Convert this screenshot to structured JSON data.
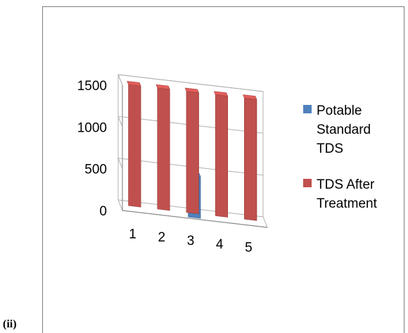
{
  "figure_label": "(ii)",
  "chart_data": {
    "type": "bar",
    "variant": "3d-clustered-column",
    "categories": [
      "1",
      "2",
      "3",
      "4",
      "5"
    ],
    "series": [
      {
        "name": "Potable Standard TDS",
        "legend_lines": [
          "Potable",
          "Standard",
          "TDS"
        ],
        "color": "#4f81bd",
        "values": [
          null,
          null,
          500,
          null,
          null
        ]
      },
      {
        "name": "TDS After Treatment",
        "legend_lines": [
          "TDS After",
          "Treatment"
        ],
        "color": "#c0504d",
        "values": [
          1450,
          1450,
          1450,
          1450,
          1450
        ]
      }
    ],
    "y_ticks": [
      "0",
      "500",
      "1000",
      "1500"
    ],
    "ylim": [
      0,
      1500
    ],
    "grid": true,
    "legend_position": "right"
  }
}
